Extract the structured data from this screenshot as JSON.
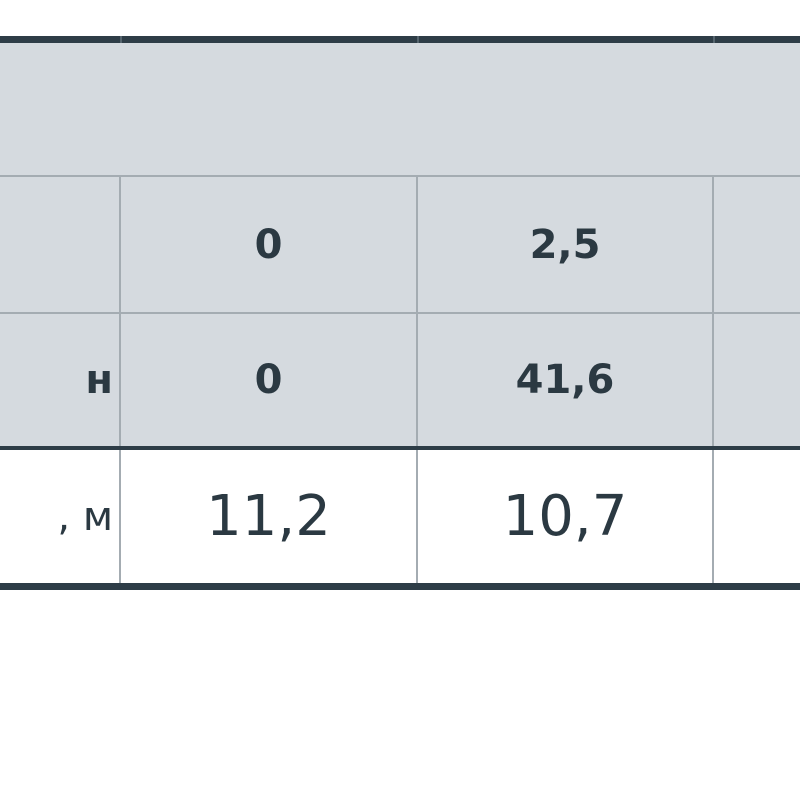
{
  "table": {
    "rows": [
      {
        "label": "",
        "values": [
          "0",
          "2,5",
          ""
        ]
      },
      {
        "label": "н",
        "values": [
          "0",
          "41,6",
          ""
        ]
      },
      {
        "label": ", м",
        "values": [
          "11,2",
          "10,7",
          ""
        ]
      }
    ]
  },
  "colors": {
    "header_bg": "#d5dadf",
    "border_dark": "#2e3d47",
    "text": "#2b3942"
  }
}
